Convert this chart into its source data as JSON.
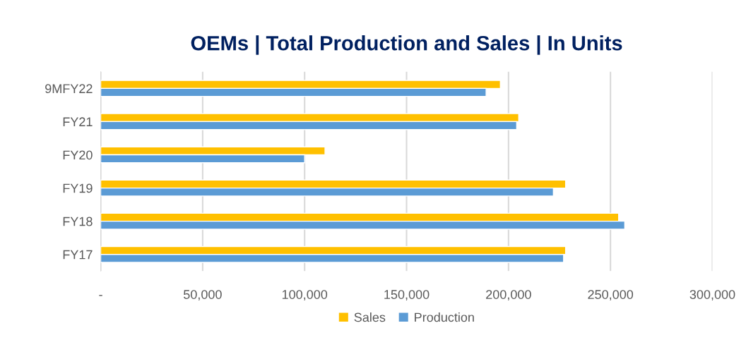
{
  "chart_data": {
    "type": "bar",
    "orientation": "horizontal",
    "title": "OEMs | Total Production and Sales | In Units",
    "categories": [
      "9MFY22",
      "FY21",
      "FY20",
      "FY19",
      "FY18",
      "FY17"
    ],
    "series": [
      {
        "name": "Sales",
        "color": "#ffc000",
        "values": [
          196000,
          205000,
          110000,
          228000,
          254000,
          228000
        ]
      },
      {
        "name": "Production",
        "color": "#5b9bd5",
        "values": [
          189000,
          204000,
          100000,
          222000,
          257000,
          227000
        ]
      }
    ],
    "xlim": [
      0,
      300000
    ],
    "xticks": [
      {
        "value": 0,
        "label": "-"
      },
      {
        "value": 50000,
        "label": "50,000"
      },
      {
        "value": 100000,
        "label": "100,000"
      },
      {
        "value": 150000,
        "label": "150,000"
      },
      {
        "value": 200000,
        "label": "200,000"
      },
      {
        "value": 250000,
        "label": "250,000"
      },
      {
        "value": 300000,
        "label": "300,000"
      }
    ],
    "grid": "x",
    "legend": "bottom"
  }
}
